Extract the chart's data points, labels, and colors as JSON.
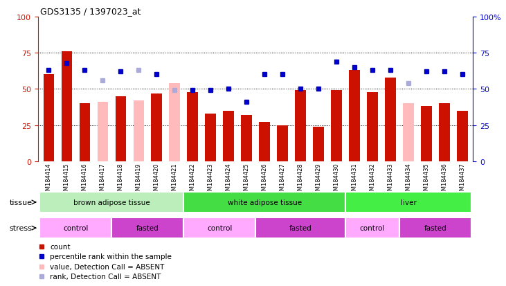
{
  "title": "GDS3135 / 1397023_at",
  "samples": [
    "GSM184414",
    "GSM184415",
    "GSM184416",
    "GSM184417",
    "GSM184418",
    "GSM184419",
    "GSM184420",
    "GSM184421",
    "GSM184422",
    "GSM184423",
    "GSM184424",
    "GSM184425",
    "GSM184426",
    "GSM184427",
    "GSM184428",
    "GSM184429",
    "GSM184430",
    "GSM184431",
    "GSM184432",
    "GSM184433",
    "GSM184434",
    "GSM184435",
    "GSM184436",
    "GSM184437"
  ],
  "bar_values": [
    60,
    76,
    40,
    41,
    45,
    42,
    47,
    54,
    48,
    33,
    35,
    32,
    27,
    25,
    49,
    24,
    49,
    63,
    48,
    58,
    40,
    38,
    40,
    35
  ],
  "bar_absent": [
    false,
    false,
    false,
    true,
    false,
    true,
    false,
    true,
    false,
    false,
    false,
    false,
    false,
    false,
    false,
    false,
    false,
    false,
    false,
    false,
    true,
    false,
    false,
    false
  ],
  "rank_values": [
    63,
    68,
    63,
    56,
    62,
    63,
    60,
    49,
    49,
    49,
    50,
    41,
    60,
    60,
    50,
    50,
    69,
    65,
    63,
    63,
    54,
    62,
    62,
    60
  ],
  "rank_absent": [
    false,
    false,
    false,
    true,
    false,
    true,
    false,
    true,
    false,
    false,
    false,
    false,
    false,
    false,
    false,
    false,
    false,
    false,
    false,
    false,
    true,
    false,
    false,
    false
  ],
  "tissue_groups": [
    {
      "label": "brown adipose tissue",
      "start": 0,
      "end": 8,
      "color": "#BBEEBB"
    },
    {
      "label": "white adipose tissue",
      "start": 8,
      "end": 17,
      "color": "#44DD44"
    },
    {
      "label": "liver",
      "start": 17,
      "end": 24,
      "color": "#44EE44"
    }
  ],
  "stress_groups": [
    {
      "label": "control",
      "start": 0,
      "end": 4,
      "color": "#FFAAFF"
    },
    {
      "label": "fasted",
      "start": 4,
      "end": 8,
      "color": "#CC44CC"
    },
    {
      "label": "control",
      "start": 8,
      "end": 12,
      "color": "#FFAAFF"
    },
    {
      "label": "fasted",
      "start": 12,
      "end": 17,
      "color": "#CC44CC"
    },
    {
      "label": "control",
      "start": 17,
      "end": 20,
      "color": "#FFAAFF"
    },
    {
      "label": "fasted",
      "start": 20,
      "end": 24,
      "color": "#CC44CC"
    }
  ],
  "bar_color": "#CC1100",
  "bar_absent_color": "#FFBBBB",
  "rank_color": "#0000CC",
  "rank_absent_color": "#AAAADD",
  "ylim": [
    0,
    100
  ],
  "grid_values": [
    25,
    50,
    75
  ],
  "right_ytick_labels": [
    "0",
    "25",
    "50",
    "75",
    "100%"
  ],
  "background_color": "#FFFFFF"
}
